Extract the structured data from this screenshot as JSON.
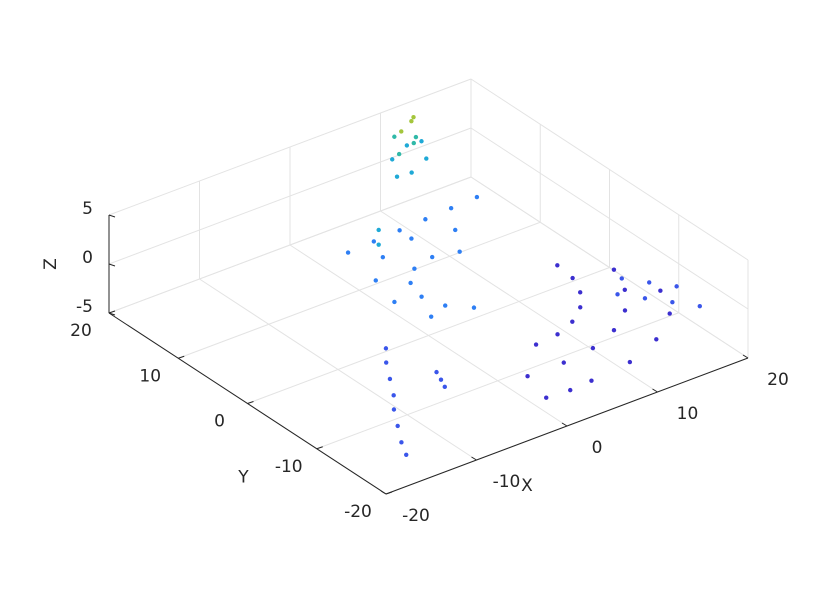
{
  "chart_data": {
    "type": "scatter3d",
    "xlabel": "X",
    "ylabel": "Y",
    "zlabel": "Z",
    "xlim": [
      -20,
      20
    ],
    "ylim": [
      -20,
      20
    ],
    "zlim": [
      -5,
      5
    ],
    "xticks": [
      -20,
      -10,
      0,
      10,
      20
    ],
    "yticks": [
      -20,
      -10,
      0,
      10,
      20
    ],
    "zticks": [
      -5,
      0,
      5
    ],
    "grid": true,
    "series": [
      {
        "color": "#3c2fcf",
        "x": [
          5,
          9.7,
          14,
          17.7,
          19.5,
          5,
          8.6,
          12,
          14.9,
          17.1,
          18.5,
          5,
          7.6,
          10,
          12.1,
          13.7,
          14.7,
          15,
          0,
          2.5,
          1
        ],
        "y": [
          -17,
          -16.4,
          -14.6,
          -11.7,
          -8,
          -13,
          -12.5,
          -11.1,
          -8.9,
          -6,
          -2.6,
          -9,
          -8.7,
          -7.7,
          -6.1,
          -4,
          -1.6,
          1,
          -17,
          -17.2,
          -13
        ],
        "z": [
          -3.5,
          -3.5,
          -3.5,
          -3.5,
          -3.5,
          -3.5,
          -3.5,
          -3.5,
          -3.5,
          -3.5,
          -3.5,
          -3.5,
          -3.5,
          -3.5,
          -3.5,
          -3.5,
          -3.5,
          -3.5,
          -3.5,
          -3.5,
          -3.5
        ]
      },
      {
        "color": "#3a56ea",
        "x": [
          -7,
          -8.5,
          -10,
          -11.5,
          -13,
          -14.5,
          -16,
          -17,
          -6,
          -6.5,
          -7,
          14,
          15.5,
          17,
          18.5,
          16,
          17.5,
          19
        ],
        "y": [
          -3,
          -5,
          -7.5,
          -10,
          -12,
          -14.5,
          -17,
          -19,
          -9,
          -10.3,
          -11.5,
          -9,
          -11,
          -13,
          -15,
          -7,
          -9,
          -11
        ],
        "z": [
          -2.5,
          -2.5,
          -2.5,
          -2.5,
          -2.5,
          -2.5,
          -2.5,
          -2.5,
          -2.5,
          -2.5,
          -2.5,
          -1.5,
          -1.5,
          -1.5,
          -1.5,
          -1.5,
          -1.5,
          -1.5
        ]
      },
      {
        "color": "#2e7ff4",
        "x": [
          7.5,
          5,
          2.5,
          0.7,
          0,
          0.7,
          2.5,
          9,
          5,
          1,
          -2,
          -3,
          -2,
          -2,
          1,
          4,
          7,
          10,
          13
        ],
        "y": [
          5.3,
          6,
          5.3,
          3.5,
          1,
          -1.5,
          -3.3,
          7.9,
          9,
          7.9,
          5,
          1,
          -3,
          9,
          9.2,
          9.4,
          9.6,
          9.8,
          10
        ],
        "z": [
          -1.5,
          -1.5,
          -1.5,
          -1.5,
          -1.5,
          -1.5,
          -1.5,
          -1,
          -1,
          -1,
          -1,
          -1,
          -1,
          0,
          0,
          0,
          0,
          0,
          0
        ]
      },
      {
        "color": "#1fa9d6",
        "x": [
          8,
          10,
          12,
          9,
          11,
          13,
          1,
          1
        ],
        "y": [
          15,
          15.5,
          16,
          17,
          17.5,
          18,
          8.5,
          8.5
        ],
        "z": [
          1.5,
          1,
          1.5,
          2,
          2.5,
          2,
          0,
          1.5
        ]
      },
      {
        "color": "#30b9a8",
        "x": [
          9,
          11,
          12,
          10
        ],
        "y": [
          16,
          16.5,
          17.5,
          18
        ],
        "z": [
          3,
          3.2,
          3,
          3.5
        ]
      },
      {
        "color": "#a4c63c",
        "x": [
          10,
          11.5,
          12.5
        ],
        "y": [
          17,
          17.5,
          18.5
        ],
        "z": [
          4.5,
          4.8,
          4.4
        ]
      }
    ]
  }
}
